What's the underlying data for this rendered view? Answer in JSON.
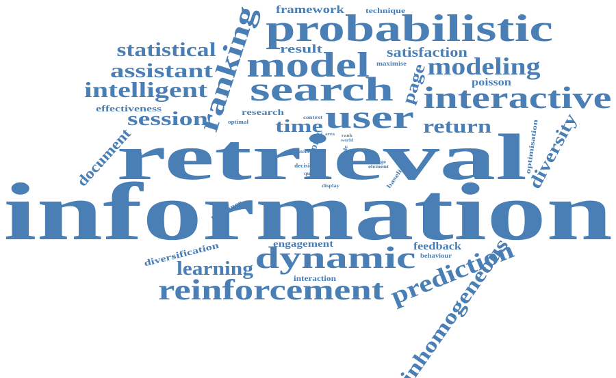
{
  "colors": {
    "word": "#4a7fb5",
    "background": "#ffffff"
  },
  "words": [
    "information",
    "retrieval",
    "probabilistic",
    "search",
    "model",
    "user",
    "interactive",
    "dynamic",
    "reinforcement",
    "ranking",
    "modeling",
    "prediction",
    "inhomogeneous",
    "intelligent",
    "assistant",
    "statistical",
    "session",
    "diversity",
    "document",
    "learning",
    "return",
    "time",
    "page",
    "satisfaction",
    "result",
    "framework",
    "technique",
    "poisson",
    "effectiveness",
    "research",
    "optimal",
    "context",
    "diversification",
    "engagement",
    "feedback",
    "behaviour",
    "interaction",
    "relevance",
    "optimisation",
    "baseline",
    "proc",
    "system",
    "decision",
    "queries",
    "multiple",
    "change",
    "element",
    "display",
    "area",
    "rank",
    "world",
    "maximise"
  ]
}
